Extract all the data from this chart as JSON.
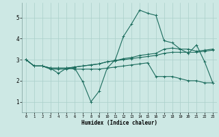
{
  "title": "",
  "xlabel": "Humidex (Indice chaleur)",
  "bg_color": "#cde8e4",
  "line_color": "#1a6b5c",
  "grid_color": "#aacfca",
  "x_ticks": [
    0,
    1,
    2,
    3,
    4,
    5,
    6,
    7,
    8,
    9,
    10,
    11,
    12,
    13,
    14,
    15,
    16,
    17,
    18,
    19,
    20,
    21,
    22,
    23
  ],
  "y_ticks": [
    1,
    2,
    3,
    4,
    5
  ],
  "xlim": [
    -0.5,
    23.5
  ],
  "ylim": [
    0.5,
    5.7
  ],
  "line1_y": [
    3.0,
    2.7,
    2.7,
    2.6,
    2.35,
    2.6,
    2.55,
    2.55,
    2.55,
    2.55,
    2.6,
    2.65,
    2.7,
    2.75,
    2.8,
    2.85,
    2.2,
    2.2,
    2.2,
    2.1,
    2.0,
    2.0,
    1.9,
    1.9
  ],
  "line2_y": [
    3.0,
    2.7,
    2.7,
    2.55,
    2.55,
    2.55,
    2.6,
    1.95,
    1.0,
    1.5,
    2.6,
    3.0,
    4.1,
    4.7,
    5.35,
    5.2,
    5.1,
    3.9,
    3.8,
    3.5,
    3.3,
    3.7,
    2.9,
    1.9
  ],
  "line3_y": [
    3.0,
    2.7,
    2.7,
    2.6,
    2.6,
    2.6,
    2.65,
    2.7,
    2.75,
    2.8,
    2.9,
    2.95,
    3.05,
    3.1,
    3.2,
    3.25,
    3.3,
    3.5,
    3.55,
    3.5,
    3.5,
    3.4,
    3.45,
    3.5
  ],
  "line4_y": [
    3.0,
    2.7,
    2.7,
    2.6,
    2.6,
    2.6,
    2.65,
    2.7,
    2.75,
    2.8,
    2.9,
    2.95,
    3.0,
    3.05,
    3.1,
    3.15,
    3.2,
    3.3,
    3.35,
    3.35,
    3.35,
    3.35,
    3.4,
    3.45
  ]
}
